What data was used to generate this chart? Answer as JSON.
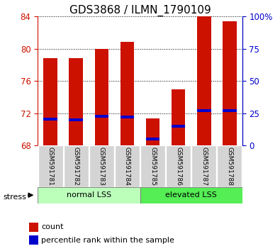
{
  "title": "GDS3868 / ILMN_1790109",
  "samples": [
    "GSM591781",
    "GSM591782",
    "GSM591783",
    "GSM591784",
    "GSM591785",
    "GSM591786",
    "GSM591787",
    "GSM591788"
  ],
  "bar_tops": [
    78.8,
    78.8,
    80.0,
    80.8,
    71.4,
    75.0,
    84.0,
    83.4
  ],
  "bar_base": 68,
  "percentile_values": [
    20.5,
    20.0,
    22.5,
    22.0,
    5.0,
    15.0,
    27.0,
    27.0
  ],
  "ylim": [
    68,
    84
  ],
  "y_ticks_left": [
    68,
    72,
    76,
    80,
    84
  ],
  "y_ticks_right": [
    0,
    25,
    50,
    75,
    100
  ],
  "bar_color": "#cc1100",
  "marker_color": "#0000cc",
  "group1_label": "normal LSS",
  "group2_label": "elevated LSS",
  "group1_color": "#bbffbb",
  "group2_color": "#55ee55",
  "stress_label": "stress",
  "legend_count": "count",
  "legend_pct": "percentile rank within the sample",
  "ytick_color_left": "#cc1100",
  "ytick_color_right": "#0000cc",
  "bar_width": 0.55,
  "title_fontsize": 11
}
